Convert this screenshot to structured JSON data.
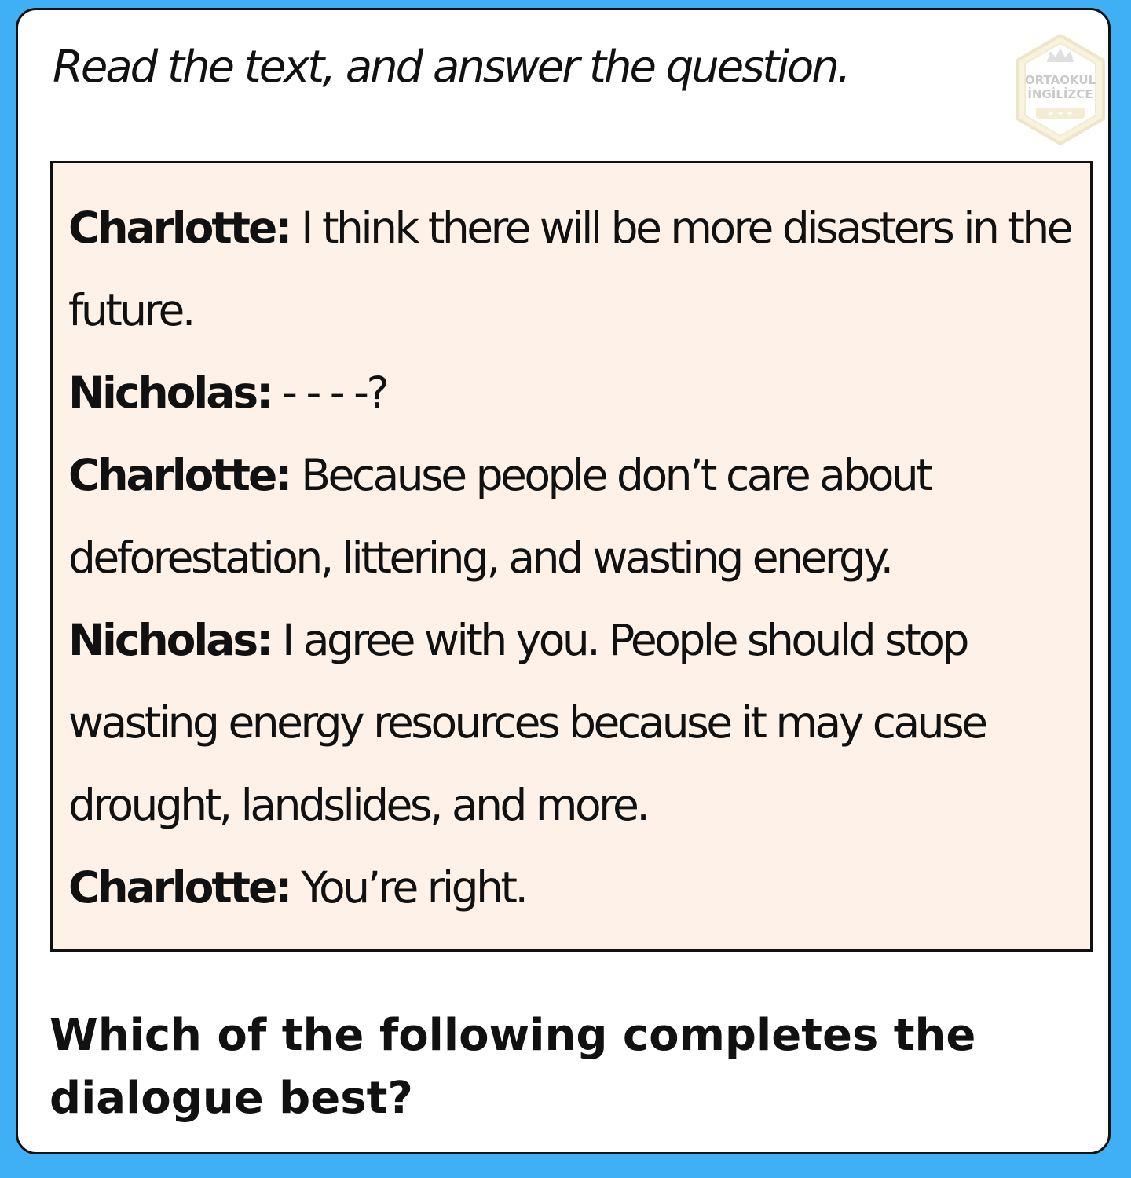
{
  "instruction": "Read the text, and answer the question.",
  "logo": {
    "line1": "ORTAOKUL",
    "line2": "İNGİLİZCE",
    "icon": "crown-hexagon-logo"
  },
  "dialogue": [
    {
      "speaker": "Charlotte:",
      "text": "I think there will be more disasters in the future."
    },
    {
      "speaker": "Nicholas:",
      "text": "- - - -?"
    },
    {
      "speaker": "Charlotte:",
      "text": "Because people don’t care about deforestation, littering, and wasting energy."
    },
    {
      "speaker": "Nicholas:",
      "text": "I agree with you. People should stop wasting energy resources because it may cause drought, landslides, and more."
    },
    {
      "speaker": "Charlotte:",
      "text": "You’re right."
    }
  ],
  "question": "Which of the following completes the dialogue best?",
  "colors": {
    "page_background": "#3fb0f5",
    "card_background": "#ffffff",
    "dialogue_background": "#fdf1e8",
    "text": "#111111"
  }
}
